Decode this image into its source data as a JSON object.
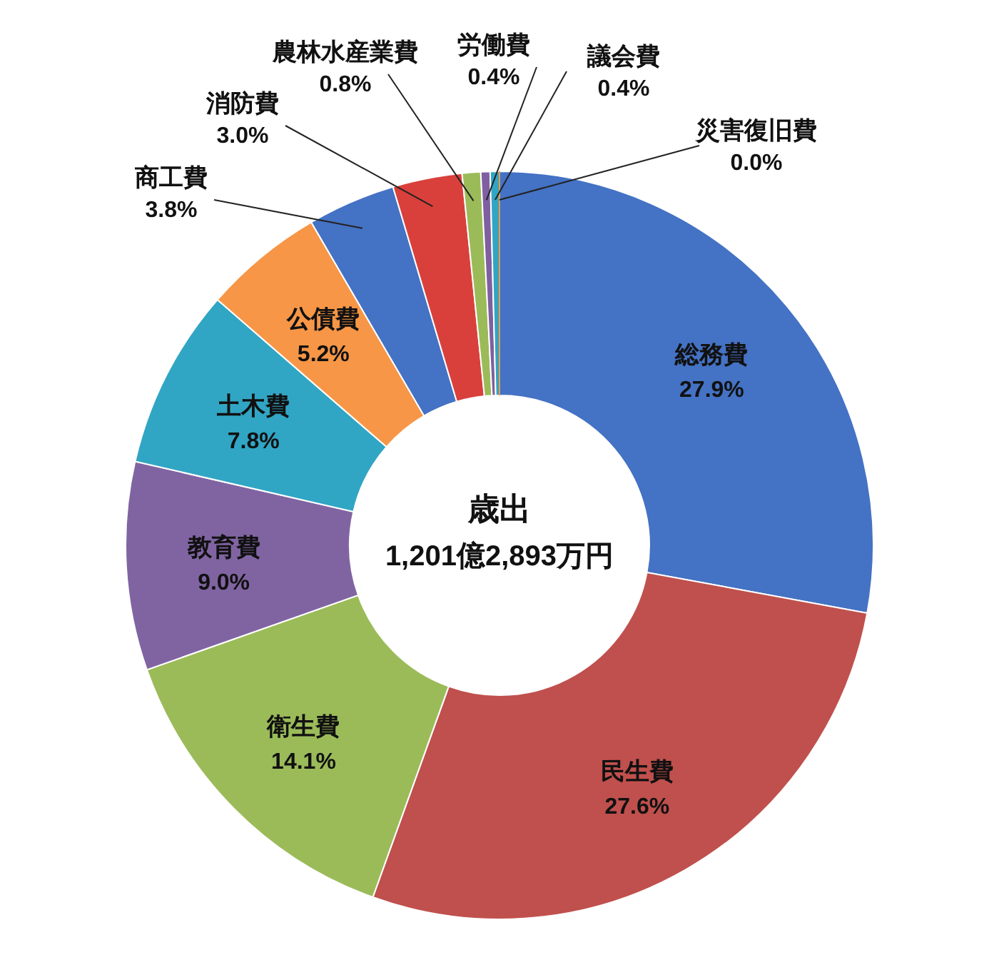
{
  "chart_data": {
    "type": "donut",
    "title": "歳出",
    "subtitle": "1,201億2,893万円",
    "categories": [
      "総務費",
      "民生費",
      "衛生費",
      "教育費",
      "土木費",
      "公債費",
      "商工費",
      "消防費",
      "農林水産業費",
      "労働費",
      "議会費",
      "災害復旧費"
    ],
    "values": [
      27.9,
      27.6,
      14.1,
      9.0,
      7.8,
      5.2,
      3.8,
      3.0,
      0.8,
      0.4,
      0.4,
      0.0
    ],
    "value_labels": [
      "27.9%",
      "27.6%",
      "14.1%",
      "9.0%",
      "7.8%",
      "5.2%",
      "3.8%",
      "3.0%",
      "0.8%",
      "0.4%",
      "0.4%",
      "0.0%"
    ],
    "colors": [
      "#4472c4",
      "#c0504d",
      "#9bbb59",
      "#8064a2",
      "#31a5c4",
      "#f79646",
      "#4472c4",
      "#d9403b",
      "#9bbb59",
      "#7f5fa0",
      "#31a5c4",
      "#f79646"
    ]
  }
}
